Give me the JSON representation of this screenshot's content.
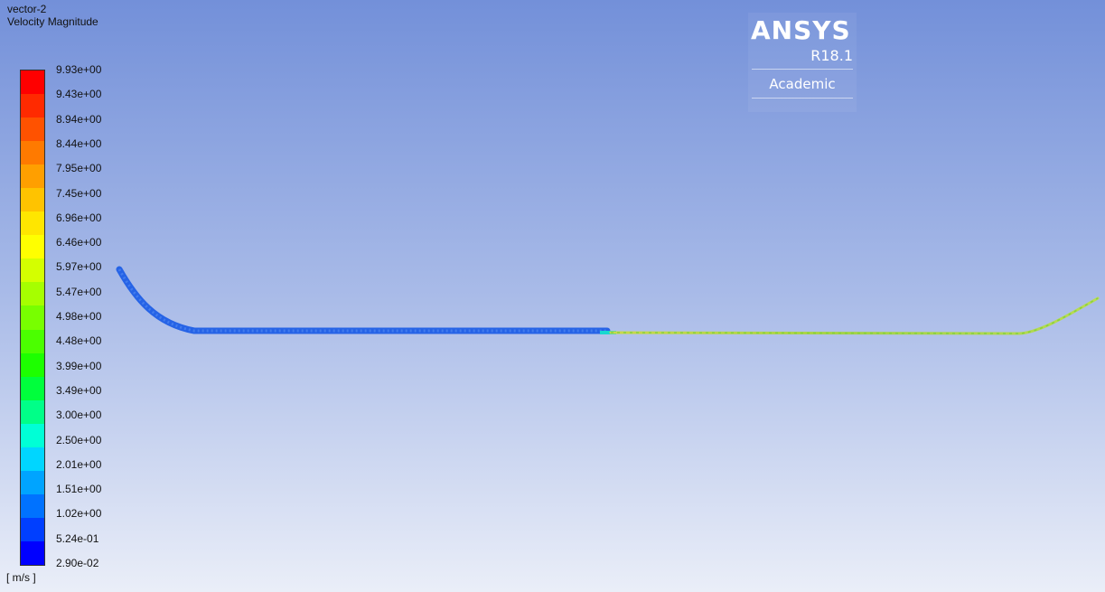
{
  "viewer": {
    "title": "vector-2",
    "variable": "Velocity Magnitude",
    "unit": "[ m/s ]"
  },
  "logo": {
    "brand": "ANSYS",
    "version": "R18.1",
    "edition": "Academic"
  },
  "colorbar": {
    "labels": [
      "9.93e+00",
      "9.43e+00",
      "8.94e+00",
      "8.44e+00",
      "7.95e+00",
      "7.45e+00",
      "6.96e+00",
      "6.46e+00",
      "5.97e+00",
      "5.47e+00",
      "4.98e+00",
      "4.48e+00",
      "3.99e+00",
      "3.49e+00",
      "3.00e+00",
      "2.50e+00",
      "2.01e+00",
      "1.51e+00",
      "1.02e+00",
      "5.24e-01",
      "2.90e-02"
    ],
    "colors": [
      "#ff0000",
      "#ff2a00",
      "#ff5200",
      "#ff7a00",
      "#ff9f00",
      "#ffc300",
      "#ffe600",
      "#ffff00",
      "#d4ff00",
      "#a6ff00",
      "#78ff00",
      "#4bff00",
      "#1dff00",
      "#00ff3c",
      "#00ff88",
      "#00ffd6",
      "#00d6ff",
      "#00a4ff",
      "#0072ff",
      "#003fff",
      "#0000ff"
    ]
  },
  "flow_field": {
    "left_region_color": "#1f5ee6",
    "right_region_color": "#a4d24a",
    "transition_color": "#18d8d0"
  }
}
